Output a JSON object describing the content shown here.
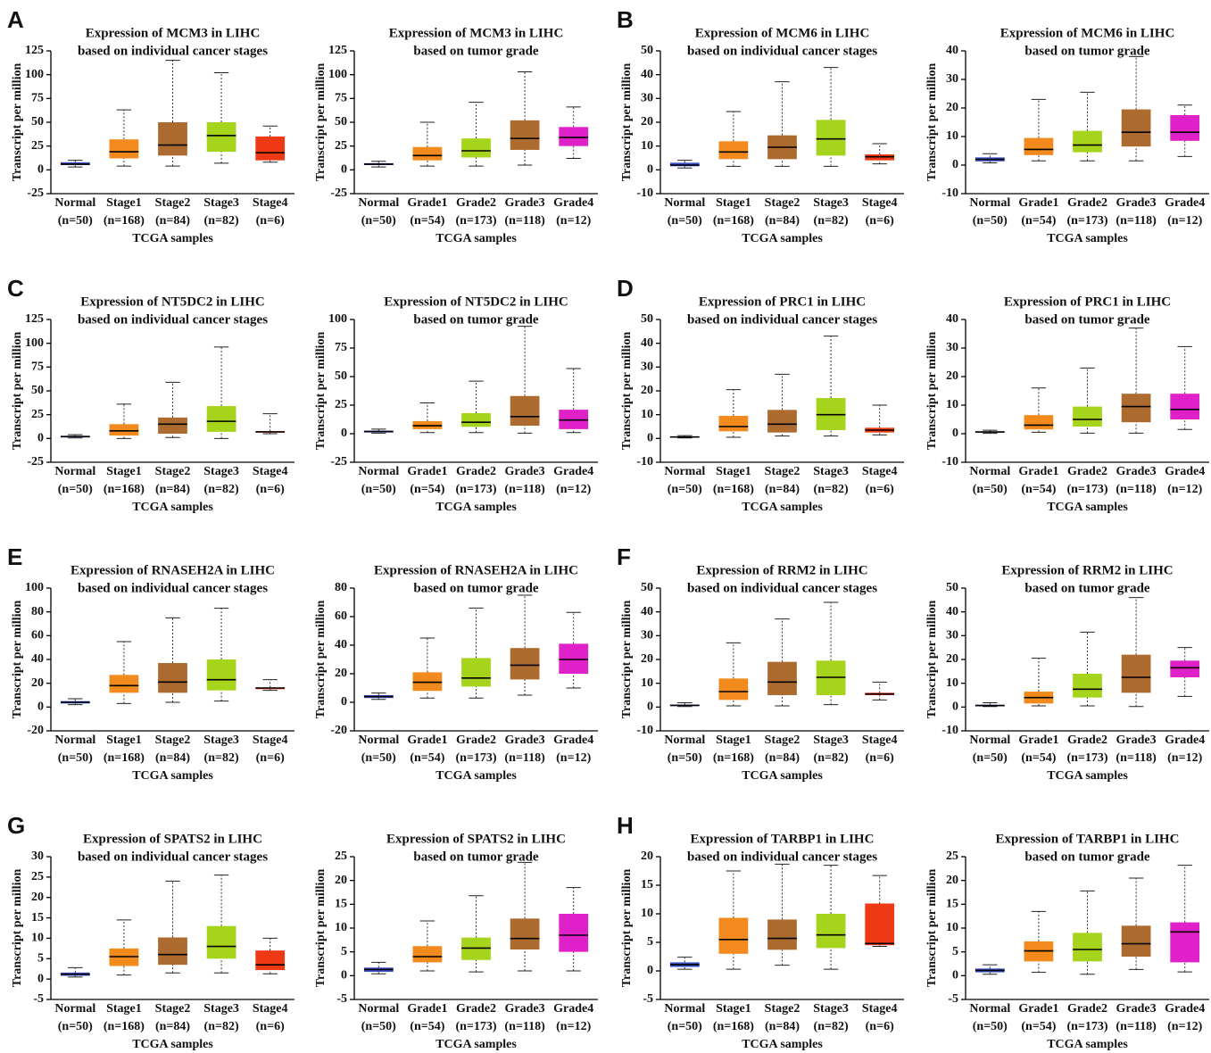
{
  "chart_data": [
    {
      "type": "box",
      "panel": "A",
      "title": "Expression of MCM3 in LIHC",
      "subtitle": "based on individual cancer stages",
      "ylabel": "Transcript per million",
      "xlabel": "TCGA samples",
      "categories": [
        "Normal",
        "Stage1",
        "Stage2",
        "Stage3",
        "Stage4"
      ],
      "sample_sizes": [
        "(n=50)",
        "(n=168)",
        "(n=84)",
        "(n=82)",
        "(n=6)"
      ],
      "colors": [
        "#3a4fc4",
        "#f28a1e",
        "#ad6b30",
        "#a6d41c",
        "#ee3a14"
      ],
      "min": [
        3,
        4,
        4,
        7,
        8
      ],
      "q1": [
        5,
        12,
        15,
        19,
        10
      ],
      "median": [
        6,
        19,
        26,
        36,
        18
      ],
      "q3": [
        8,
        32,
        50,
        50,
        35
      ],
      "max": [
        10,
        63,
        115,
        102,
        46
      ],
      "ylim": [
        -25,
        125
      ],
      "yticks": [
        -25,
        0,
        25,
        50,
        75,
        100,
        125
      ]
    },
    {
      "type": "box",
      "title": "Expression of MCM3 in LIHC",
      "subtitle": "based on tumor grade",
      "ylabel": "Transcript per million",
      "xlabel": "TCGA samples",
      "categories": [
        "Normal",
        "Grade1",
        "Grade2",
        "Grade3",
        "Grade4"
      ],
      "sample_sizes": [
        "(n=50)",
        "(n=54)",
        "(n=173)",
        "(n=118)",
        "(n=12)"
      ],
      "colors": [
        "#3a4fc4",
        "#f28a1e",
        "#a6d41c",
        "#ad6b30",
        "#e020c8"
      ],
      "min": [
        3,
        4,
        4,
        5,
        12
      ],
      "q1": [
        5,
        10,
        13,
        21,
        25
      ],
      "median": [
        6,
        15,
        20,
        33,
        34
      ],
      "q3": [
        7,
        24,
        33,
        52,
        45
      ],
      "max": [
        9,
        50,
        71,
        103,
        66
      ],
      "ylim": [
        -25,
        125
      ],
      "yticks": [
        -25,
        0,
        25,
        50,
        75,
        100,
        125
      ]
    },
    {
      "type": "box",
      "panel": "B",
      "title": "Expression of MCM6 in LIHC",
      "subtitle": "based on individual cancer stages",
      "ylabel": "Transcript per million",
      "xlabel": "TCGA samples",
      "categories": [
        "Normal",
        "Stage1",
        "Stage2",
        "Stage3",
        "Stage4"
      ],
      "sample_sizes": [
        "(n=50)",
        "(n=168)",
        "(n=84)",
        "(n=82)",
        "(n=6)"
      ],
      "colors": [
        "#3a4fc4",
        "#f28a1e",
        "#ad6b30",
        "#a6d41c",
        "#ee3a14"
      ],
      "min": [
        0.8,
        1.5,
        1.5,
        1.5,
        2.5
      ],
      "q1": [
        1.5,
        4.5,
        4.5,
        6,
        4
      ],
      "median": [
        2,
        7.5,
        9.5,
        13,
        5.5
      ],
      "q3": [
        3,
        12,
        14.5,
        21,
        6.5
      ],
      "max": [
        4,
        24.5,
        37,
        43,
        11
      ],
      "ylim": [
        -10,
        50
      ],
      "yticks": [
        -10,
        0,
        10,
        20,
        30,
        40,
        50
      ]
    },
    {
      "type": "box",
      "title": "Expression of MCM6 in LIHC",
      "subtitle": "based on tumor grade",
      "ylabel": "Transcript per million",
      "xlabel": "TCGA samples",
      "categories": [
        "Normal",
        "Grade1",
        "Grade2",
        "Grade3",
        "Grade4"
      ],
      "sample_sizes": [
        "(n=50)",
        "(n=54)",
        "(n=173)",
        "(n=118)",
        "(n=12)"
      ],
      "colors": [
        "#3a4fc4",
        "#f28a1e",
        "#a6d41c",
        "#ad6b30",
        "#e020c8"
      ],
      "min": [
        0.8,
        1.5,
        1.5,
        1.5,
        3
      ],
      "q1": [
        1.3,
        3.5,
        4.5,
        6.5,
        8.5
      ],
      "median": [
        2,
        5.5,
        7,
        11.5,
        11.5
      ],
      "q3": [
        2.7,
        9.5,
        12,
        19.5,
        17.5
      ],
      "max": [
        4,
        23,
        25.5,
        38,
        21
      ],
      "ylim": [
        -10,
        40
      ],
      "yticks": [
        -10,
        0,
        10,
        20,
        30,
        40
      ]
    },
    {
      "type": "box",
      "panel": "C",
      "title": "Expression of NT5DC2 in LIHC",
      "subtitle": "based on individual cancer stages",
      "ylabel": "Transcript per million",
      "xlabel": "TCGA samples",
      "categories": [
        "Normal",
        "Stage1",
        "Stage2",
        "Stage3",
        "Stage4"
      ],
      "sample_sizes": [
        "(n=50)",
        "(n=168)",
        "(n=84)",
        "(n=82)",
        "(n=6)"
      ],
      "colors": [
        "#3a4fc4",
        "#f28a1e",
        "#ad6b30",
        "#a6d41c",
        "#ee3a14"
      ],
      "min": [
        0.5,
        0,
        1,
        0,
        5
      ],
      "q1": [
        1,
        3,
        5,
        7,
        6
      ],
      "median": [
        2,
        8,
        15,
        18,
        7
      ],
      "q3": [
        2.5,
        15,
        22,
        34,
        7.5
      ],
      "max": [
        4,
        36,
        59,
        96,
        26
      ],
      "ylim": [
        -25,
        125
      ],
      "yticks": [
        -25,
        0,
        25,
        50,
        75,
        100,
        125
      ]
    },
    {
      "type": "box",
      "title": "Expression of NT5DC2 in LIHC",
      "subtitle": "based on tumor grade",
      "ylabel": "Transcript per million",
      "xlabel": "TCGA samples",
      "categories": [
        "Normal",
        "Grade1",
        "Grade2",
        "Grade3",
        "Grade4"
      ],
      "sample_sizes": [
        "(n=50)",
        "(n=54)",
        "(n=173)",
        "(n=118)",
        "(n=12)"
      ],
      "colors": [
        "#3a4fc4",
        "#f28a1e",
        "#a6d41c",
        "#ad6b30",
        "#e020c8"
      ],
      "min": [
        0.5,
        1,
        1,
        0.5,
        1
      ],
      "q1": [
        1,
        4,
        6,
        7,
        4
      ],
      "median": [
        2,
        7,
        10,
        15,
        12
      ],
      "q3": [
        2.5,
        11,
        18,
        33,
        21
      ],
      "max": [
        4,
        27,
        46,
        94,
        57
      ],
      "ylim": [
        -25,
        100
      ],
      "yticks": [
        -25,
        0,
        25,
        50,
        75,
        100
      ]
    },
    {
      "type": "box",
      "panel": "D",
      "title": "Expression of PRC1 in LIHC",
      "subtitle": "based on individual cancer stages",
      "ylabel": "Transcript per million",
      "xlabel": "TCGA samples",
      "categories": [
        "Normal",
        "Stage1",
        "Stage2",
        "Stage3",
        "Stage4"
      ],
      "sample_sizes": [
        "(n=50)",
        "(n=168)",
        "(n=84)",
        "(n=82)",
        "(n=6)"
      ],
      "colors": [
        "#3a4fc4",
        "#f28a1e",
        "#ad6b30",
        "#a6d41c",
        "#ee3a14"
      ],
      "min": [
        0.2,
        0.5,
        1,
        1,
        1.5
      ],
      "q1": [
        0.4,
        3,
        2.5,
        3.5,
        2.5
      ],
      "median": [
        0.6,
        5,
        6,
        10,
        3.5
      ],
      "q3": [
        0.8,
        9.5,
        12,
        17,
        4.5
      ],
      "max": [
        1.2,
        20.5,
        27,
        43,
        14
      ],
      "ylim": [
        -10,
        50
      ],
      "yticks": [
        -10,
        0,
        10,
        20,
        30,
        40,
        50
      ]
    },
    {
      "type": "box",
      "title": "Expression of PRC1 in LIHC",
      "subtitle": "based on tumor grade",
      "ylabel": "Transcript per million",
      "xlabel": "TCGA samples",
      "categories": [
        "Normal",
        "Grade1",
        "Grade2",
        "Grade3",
        "Grade4"
      ],
      "sample_sizes": [
        "(n=50)",
        "(n=54)",
        "(n=173)",
        "(n=118)",
        "(n=12)"
      ],
      "colors": [
        "#3a4fc4",
        "#f28a1e",
        "#a6d41c",
        "#ad6b30",
        "#e020c8"
      ],
      "min": [
        0.1,
        0.5,
        0.2,
        0.2,
        1.5
      ],
      "q1": [
        0.4,
        1.5,
        2.5,
        4,
        5
      ],
      "median": [
        0.6,
        3,
        5,
        9.5,
        8.5
      ],
      "q3": [
        0.8,
        6.5,
        9.5,
        14,
        14
      ],
      "max": [
        1.2,
        16,
        23,
        37,
        30.5
      ],
      "ylim": [
        -10,
        40
      ],
      "yticks": [
        -10,
        0,
        10,
        20,
        30,
        40
      ]
    },
    {
      "type": "box",
      "panel": "E",
      "title": "Expression of RNASEH2A in LIHC",
      "subtitle": "based on individual cancer stages",
      "ylabel": "Transcript per million",
      "xlabel": "TCGA samples",
      "categories": [
        "Normal",
        "Stage1",
        "Stage2",
        "Stage3",
        "Stage4"
      ],
      "sample_sizes": [
        "(n=50)",
        "(n=168)",
        "(n=84)",
        "(n=82)",
        "(n=6)"
      ],
      "colors": [
        "#3a4fc4",
        "#f28a1e",
        "#ad6b30",
        "#a6d41c",
        "#ee3a14"
      ],
      "min": [
        2,
        3,
        4,
        5,
        14
      ],
      "q1": [
        3,
        12,
        12,
        14,
        15
      ],
      "median": [
        4,
        18,
        21,
        23,
        16
      ],
      "q3": [
        5,
        27,
        37,
        40,
        16.5
      ],
      "max": [
        7,
        55,
        75,
        83,
        23
      ],
      "ylim": [
        -20,
        100
      ],
      "yticks": [
        -20,
        0,
        20,
        40,
        60,
        80,
        100
      ]
    },
    {
      "type": "box",
      "title": "Expression of RNASEH2A in LIHC",
      "subtitle": "based on tumor grade",
      "ylabel": "Transcript per million",
      "xlabel": "TCGA samples",
      "categories": [
        "Normal",
        "Grade1",
        "Grade2",
        "Grade3",
        "Grade4"
      ],
      "sample_sizes": [
        "(n=50)",
        "(n=54)",
        "(n=173)",
        "(n=118)",
        "(n=12)"
      ],
      "colors": [
        "#3a4fc4",
        "#f28a1e",
        "#a6d41c",
        "#ad6b30",
        "#e020c8"
      ],
      "min": [
        2,
        3,
        3,
        5,
        10
      ],
      "q1": [
        3,
        8,
        11,
        16,
        20
      ],
      "median": [
        4,
        14,
        17,
        26,
        30
      ],
      "q3": [
        5,
        21,
        31,
        38,
        41
      ],
      "max": [
        6.5,
        45,
        66,
        75,
        63
      ],
      "ylim": [
        -20,
        80
      ],
      "yticks": [
        -20,
        0,
        20,
        40,
        60,
        80
      ]
    },
    {
      "type": "box",
      "panel": "F",
      "title": "Expression of RRM2 in LIHC",
      "subtitle": "based on individual cancer stages",
      "ylabel": "Transcript per million",
      "xlabel": "TCGA samples",
      "categories": [
        "Normal",
        "Stage1",
        "Stage2",
        "Stage3",
        "Stage4"
      ],
      "sample_sizes": [
        "(n=50)",
        "(n=168)",
        "(n=84)",
        "(n=82)",
        "(n=6)"
      ],
      "colors": [
        "#3a4fc4",
        "#f28a1e",
        "#ad6b30",
        "#a6d41c",
        "#ee3a14"
      ],
      "min": [
        0.2,
        0.5,
        0.5,
        1,
        3
      ],
      "q1": [
        0.4,
        3,
        5,
        5,
        5
      ],
      "median": [
        0.7,
        6.5,
        10.5,
        12.5,
        5.5
      ],
      "q3": [
        1,
        12,
        19,
        19.5,
        6
      ],
      "max": [
        1.8,
        27,
        37,
        44,
        10.5
      ],
      "ylim": [
        -10,
        50
      ],
      "yticks": [
        -10,
        0,
        10,
        20,
        30,
        40,
        50
      ]
    },
    {
      "type": "box",
      "title": "Expression of RRM2 in LIHC",
      "subtitle": "based on tumor grade",
      "ylabel": "Transcript per million",
      "xlabel": "TCGA samples",
      "categories": [
        "Normal",
        "Grade1",
        "Grade2",
        "Grade3",
        "Grade4"
      ],
      "sample_sizes": [
        "(n=50)",
        "(n=54)",
        "(n=173)",
        "(n=118)",
        "(n=12)"
      ],
      "colors": [
        "#3a4fc4",
        "#f28a1e",
        "#a6d41c",
        "#ad6b30",
        "#e020c8"
      ],
      "min": [
        0.2,
        0.5,
        0.5,
        0.2,
        4.5
      ],
      "q1": [
        0.4,
        1.5,
        4,
        6,
        12.5
      ],
      "median": [
        0.6,
        4,
        7.5,
        12.5,
        16.5
      ],
      "q3": [
        1,
        6.5,
        14,
        22,
        19.5
      ],
      "max": [
        1.8,
        20.5,
        31.5,
        46,
        25
      ],
      "ylim": [
        -10,
        50
      ],
      "yticks": [
        -10,
        0,
        10,
        20,
        30,
        40,
        50
      ]
    },
    {
      "type": "box",
      "panel": "G",
      "title": "Expression of SPATS2 in LIHC",
      "subtitle": "based on individual cancer stages",
      "ylabel": "Transcript per million",
      "xlabel": "TCGA samples",
      "categories": [
        "Normal",
        "Stage1",
        "Stage2",
        "Stage3",
        "Stage4"
      ],
      "sample_sizes": [
        "(n=50)",
        "(n=168)",
        "(n=84)",
        "(n=82)",
        "(n=6)"
      ],
      "colors": [
        "#3a4fc4",
        "#f28a1e",
        "#ad6b30",
        "#a6d41c",
        "#ee3a14"
      ],
      "min": [
        0.5,
        1,
        1.5,
        1.5,
        1.3
      ],
      "q1": [
        0.8,
        3.2,
        3.5,
        5,
        2.2
      ],
      "median": [
        1.2,
        5.5,
        6,
        8,
        3.5
      ],
      "q3": [
        1.6,
        7.5,
        10.2,
        13,
        7
      ],
      "max": [
        2.8,
        14.5,
        24,
        25.5,
        10
      ],
      "ylim": [
        -5,
        30
      ],
      "yticks": [
        -5,
        0,
        5,
        10,
        15,
        20,
        25,
        30
      ]
    },
    {
      "type": "box",
      "title": "Expression of SPATS2 in LIHC",
      "subtitle": "based on tumor grade",
      "ylabel": "Transcript per million",
      "xlabel": "TCGA samples",
      "categories": [
        "Normal",
        "Grade1",
        "Grade2",
        "Grade3",
        "Grade4"
      ],
      "sample_sizes": [
        "(n=50)",
        "(n=54)",
        "(n=173)",
        "(n=118)",
        "(n=12)"
      ],
      "colors": [
        "#3a4fc4",
        "#f28a1e",
        "#a6d41c",
        "#ad6b30",
        "#e020c8"
      ],
      "min": [
        0.4,
        1,
        0.8,
        1,
        1
      ],
      "q1": [
        0.8,
        2.8,
        3.3,
        5.5,
        5
      ],
      "median": [
        1.3,
        4,
        5.8,
        7.8,
        8.5
      ],
      "q3": [
        1.7,
        6.2,
        8,
        12,
        13
      ],
      "max": [
        2.8,
        11.5,
        16.8,
        23.8,
        18.5
      ],
      "ylim": [
        -5,
        25
      ],
      "yticks": [
        -5,
        0,
        5,
        10,
        15,
        20,
        25
      ]
    },
    {
      "type": "box",
      "panel": "H",
      "title": "Expression of TARBP1 in LIHC",
      "subtitle": "based on individual cancer stages",
      "ylabel": "Transcript per million",
      "xlabel": "TCGA samples",
      "categories": [
        "Normal",
        "Stage1",
        "Stage2",
        "Stage3",
        "Stage4"
      ],
      "sample_sizes": [
        "(n=50)",
        "(n=168)",
        "(n=84)",
        "(n=82)",
        "(n=6)"
      ],
      "colors": [
        "#3a4fc4",
        "#f28a1e",
        "#ad6b30",
        "#a6d41c",
        "#ee3a14"
      ],
      "min": [
        0.3,
        0.3,
        1,
        0.3,
        4.3
      ],
      "q1": [
        0.7,
        3,
        3.7,
        4,
        4.5
      ],
      "median": [
        1.1,
        5.5,
        5.7,
        6.3,
        4.8
      ],
      "q3": [
        1.5,
        9.3,
        9,
        10,
        11.8
      ],
      "max": [
        2.4,
        17.5,
        18.7,
        18.5,
        16.7
      ],
      "ylim": [
        -5,
        20
      ],
      "yticks": [
        -5,
        0,
        5,
        10,
        15,
        20
      ]
    },
    {
      "type": "box",
      "title": "Expression of TARBP1 in LIHC",
      "subtitle": "based on tumor grade",
      "ylabel": "Transcript per million",
      "xlabel": "TCGA samples",
      "categories": [
        "Normal",
        "Grade1",
        "Grade2",
        "Grade3",
        "Grade4"
      ],
      "sample_sizes": [
        "(n=50)",
        "(n=54)",
        "(n=173)",
        "(n=118)",
        "(n=12)"
      ],
      "colors": [
        "#3a4fc4",
        "#f28a1e",
        "#a6d41c",
        "#ad6b30",
        "#e020c8"
      ],
      "min": [
        0.3,
        0.7,
        0.3,
        1.3,
        0.8
      ],
      "q1": [
        0.7,
        3,
        3,
        4,
        2.8
      ],
      "median": [
        1.1,
        5.2,
        5.5,
        6.7,
        9.2
      ],
      "q3": [
        1.5,
        7.2,
        9,
        10.5,
        11.2
      ],
      "max": [
        2.3,
        13.5,
        17.8,
        20.5,
        23.2
      ],
      "ylim": [
        -5,
        25
      ],
      "yticks": [
        -5,
        0,
        5,
        10,
        15,
        20,
        25
      ]
    }
  ]
}
